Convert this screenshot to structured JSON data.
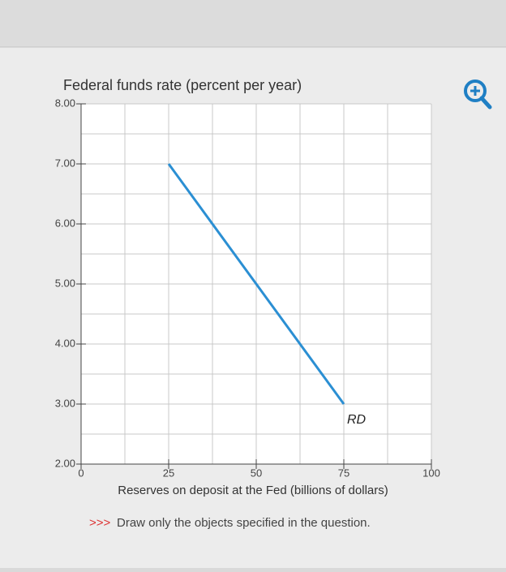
{
  "chart_data": {
    "type": "line",
    "title": "Federal funds rate (percent per year)",
    "x_label": "Reserves on deposit at the Fed (billions of dollars)",
    "series": [
      {
        "name": "RD",
        "color": "#2b8fd3",
        "x": [
          25,
          75
        ],
        "values": [
          7,
          3
        ]
      }
    ],
    "xlim": [
      0,
      100
    ],
    "xticks": [
      0,
      25,
      50,
      75,
      100
    ],
    "xminorticks": [
      12.5,
      37.5,
      62.5,
      87.5
    ],
    "ylim": [
      2,
      8
    ],
    "yticks": [
      {
        "value": 2,
        "label": "2.00"
      },
      {
        "value": 3,
        "label": "3.00"
      },
      {
        "value": 4,
        "label": "4.00"
      },
      {
        "value": 5,
        "label": "5.00"
      },
      {
        "value": 6,
        "label": "6.00"
      },
      {
        "value": 7,
        "label": "7.00"
      },
      {
        "value": 8,
        "label": "8.00"
      }
    ],
    "yminorticks": [
      2.5,
      3.5,
      4.5,
      5.5,
      6.5,
      7.5
    ],
    "grid": true
  },
  "note_prefix": ">>>",
  "note": "Draw only the objects specified in the question."
}
